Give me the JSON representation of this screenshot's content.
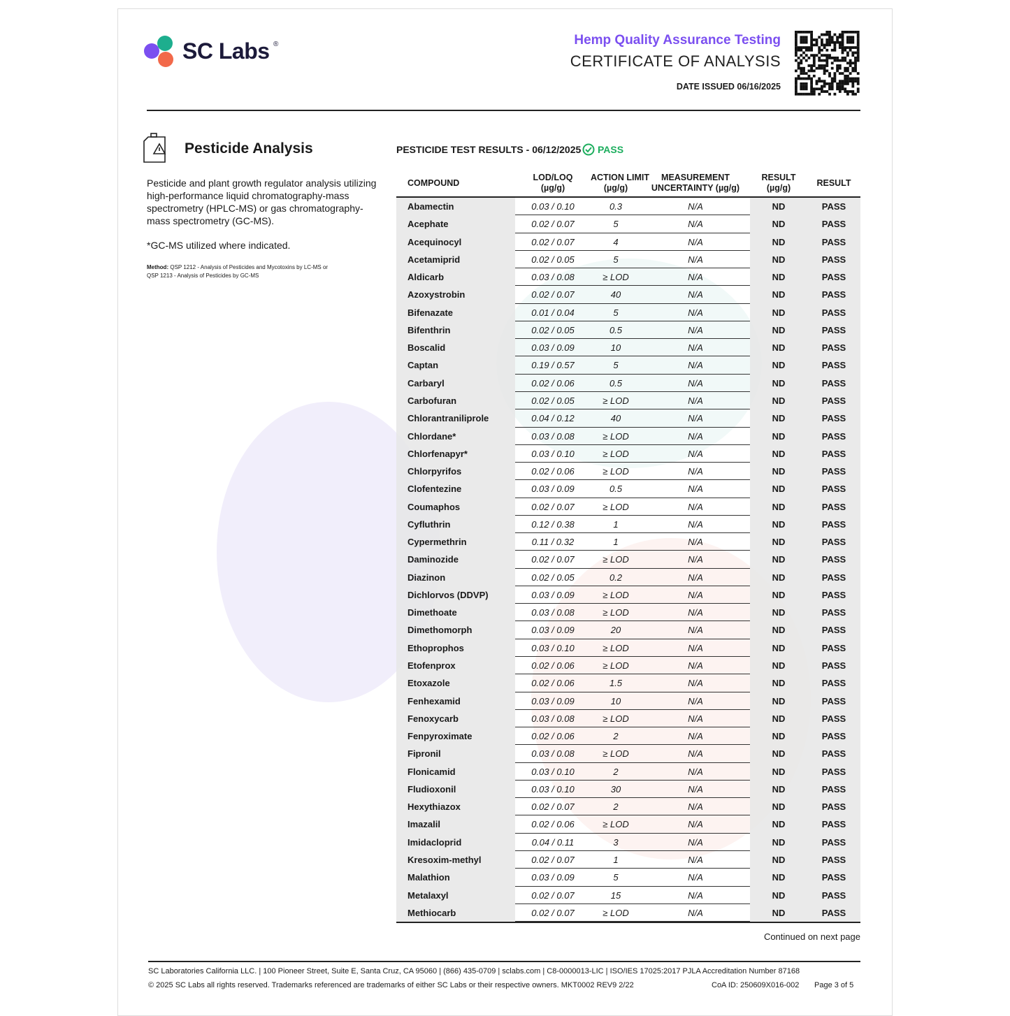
{
  "header": {
    "brand": "SC Labs",
    "trademark": "®",
    "subtitle": "Hemp Quality Assurance Testing",
    "title": "CERTIFICATE OF ANALYSIS",
    "date_issued": "DATE ISSUED 06/16/2025"
  },
  "section": {
    "title": "Pesticide Analysis",
    "description": "Pesticide and plant growth regulator analysis utilizing high-performance liquid chromatography-mass spectrometry (HPLC-MS) or gas chromatography-mass spectrometry (GC-MS).",
    "note": "*GC-MS utilized where indicated.",
    "method_label": "Method:",
    "method": "QSP 1212 - Analysis of Pesticides and Mycotoxins by LC-MS or QSP 1213 - Analysis of Pesticides by GC-MS"
  },
  "results": {
    "heading": "PESTICIDE TEST RESULTS - 06/12/2025",
    "status": "PASS"
  },
  "table": {
    "columns": [
      [
        "COMPOUND"
      ],
      [
        "LOD/LOQ",
        "(µg/g)"
      ],
      [
        "ACTION LIMIT",
        "(µg/g)"
      ],
      [
        "MEASUREMENT",
        "UNCERTAINTY (µg/g)"
      ],
      [
        "RESULT",
        "(µg/g)"
      ],
      [
        "RESULT"
      ]
    ],
    "rows": [
      [
        "Abamectin",
        "0.03 / 0.10",
        "0.3",
        "N/A",
        "ND",
        "PASS"
      ],
      [
        "Acephate",
        "0.02 / 0.07",
        "5",
        "N/A",
        "ND",
        "PASS"
      ],
      [
        "Acequinocyl",
        "0.02 / 0.07",
        "4",
        "N/A",
        "ND",
        "PASS"
      ],
      [
        "Acetamiprid",
        "0.02 / 0.05",
        "5",
        "N/A",
        "ND",
        "PASS"
      ],
      [
        "Aldicarb",
        "0.03 / 0.08",
        "≥ LOD",
        "N/A",
        "ND",
        "PASS"
      ],
      [
        "Azoxystrobin",
        "0.02 / 0.07",
        "40",
        "N/A",
        "ND",
        "PASS"
      ],
      [
        "Bifenazate",
        "0.01 / 0.04",
        "5",
        "N/A",
        "ND",
        "PASS"
      ],
      [
        "Bifenthrin",
        "0.02 / 0.05",
        "0.5",
        "N/A",
        "ND",
        "PASS"
      ],
      [
        "Boscalid",
        "0.03 / 0.09",
        "10",
        "N/A",
        "ND",
        "PASS"
      ],
      [
        "Captan",
        "0.19 / 0.57",
        "5",
        "N/A",
        "ND",
        "PASS"
      ],
      [
        "Carbaryl",
        "0.02 / 0.06",
        "0.5",
        "N/A",
        "ND",
        "PASS"
      ],
      [
        "Carbofuran",
        "0.02 / 0.05",
        "≥ LOD",
        "N/A",
        "ND",
        "PASS"
      ],
      [
        "Chlorantraniliprole",
        "0.04 / 0.12",
        "40",
        "N/A",
        "ND",
        "PASS"
      ],
      [
        "Chlordane*",
        "0.03 / 0.08",
        "≥ LOD",
        "N/A",
        "ND",
        "PASS"
      ],
      [
        "Chlorfenapyr*",
        "0.03 / 0.10",
        "≥ LOD",
        "N/A",
        "ND",
        "PASS"
      ],
      [
        "Chlorpyrifos",
        "0.02 / 0.06",
        "≥ LOD",
        "N/A",
        "ND",
        "PASS"
      ],
      [
        "Clofentezine",
        "0.03 / 0.09",
        "0.5",
        "N/A",
        "ND",
        "PASS"
      ],
      [
        "Coumaphos",
        "0.02 / 0.07",
        "≥ LOD",
        "N/A",
        "ND",
        "PASS"
      ],
      [
        "Cyfluthrin",
        "0.12 / 0.38",
        "1",
        "N/A",
        "ND",
        "PASS"
      ],
      [
        "Cypermethrin",
        "0.11 / 0.32",
        "1",
        "N/A",
        "ND",
        "PASS"
      ],
      [
        "Daminozide",
        "0.02 / 0.07",
        "≥ LOD",
        "N/A",
        "ND",
        "PASS"
      ],
      [
        "Diazinon",
        "0.02 / 0.05",
        "0.2",
        "N/A",
        "ND",
        "PASS"
      ],
      [
        "Dichlorvos (DDVP)",
        "0.03 / 0.09",
        "≥ LOD",
        "N/A",
        "ND",
        "PASS"
      ],
      [
        "Dimethoate",
        "0.03 / 0.08",
        "≥ LOD",
        "N/A",
        "ND",
        "PASS"
      ],
      [
        "Dimethomorph",
        "0.03 / 0.09",
        "20",
        "N/A",
        "ND",
        "PASS"
      ],
      [
        "Ethoprophos",
        "0.03 / 0.10",
        "≥ LOD",
        "N/A",
        "ND",
        "PASS"
      ],
      [
        "Etofenprox",
        "0.02 / 0.06",
        "≥ LOD",
        "N/A",
        "ND",
        "PASS"
      ],
      [
        "Etoxazole",
        "0.02 / 0.06",
        "1.5",
        "N/A",
        "ND",
        "PASS"
      ],
      [
        "Fenhexamid",
        "0.03 / 0.09",
        "10",
        "N/A",
        "ND",
        "PASS"
      ],
      [
        "Fenoxycarb",
        "0.03 / 0.08",
        "≥ LOD",
        "N/A",
        "ND",
        "PASS"
      ],
      [
        "Fenpyroximate",
        "0.02 / 0.06",
        "2",
        "N/A",
        "ND",
        "PASS"
      ],
      [
        "Fipronil",
        "0.03 / 0.08",
        "≥ LOD",
        "N/A",
        "ND",
        "PASS"
      ],
      [
        "Flonicamid",
        "0.03 / 0.10",
        "2",
        "N/A",
        "ND",
        "PASS"
      ],
      [
        "Fludioxonil",
        "0.03 / 0.10",
        "30",
        "N/A",
        "ND",
        "PASS"
      ],
      [
        "Hexythiazox",
        "0.02 / 0.07",
        "2",
        "N/A",
        "ND",
        "PASS"
      ],
      [
        "Imazalil",
        "0.02 / 0.06",
        "≥ LOD",
        "N/A",
        "ND",
        "PASS"
      ],
      [
        "Imidacloprid",
        "0.04 / 0.11",
        "3",
        "N/A",
        "ND",
        "PASS"
      ],
      [
        "Kresoxim-methyl",
        "0.02 / 0.07",
        "1",
        "N/A",
        "ND",
        "PASS"
      ],
      [
        "Malathion",
        "0.03 / 0.09",
        "5",
        "N/A",
        "ND",
        "PASS"
      ],
      [
        "Metalaxyl",
        "0.02 / 0.07",
        "15",
        "N/A",
        "ND",
        "PASS"
      ],
      [
        "Methiocarb",
        "0.02 / 0.07",
        "≥ LOD",
        "N/A",
        "ND",
        "PASS"
      ]
    ]
  },
  "footer": {
    "continued": "Continued on next page",
    "address": "SC Laboratories California LLC. | 100 Pioneer Street, Suite E, Santa Cruz, CA 95060 | (866) 435-0709 | sclabs.com | C8-0000013-LIC | ISO/IES 17025:2017 PJLA Accreditation Number 87168",
    "copyright": "© 2025 SC Labs all rights reserved. Trademarks referenced are trademarks of either SC Labs or their respective owners. MKT0002 REV9 2/22",
    "coa_id": "CoA ID: 250609X016-002",
    "page": "Page 3 of 5"
  }
}
